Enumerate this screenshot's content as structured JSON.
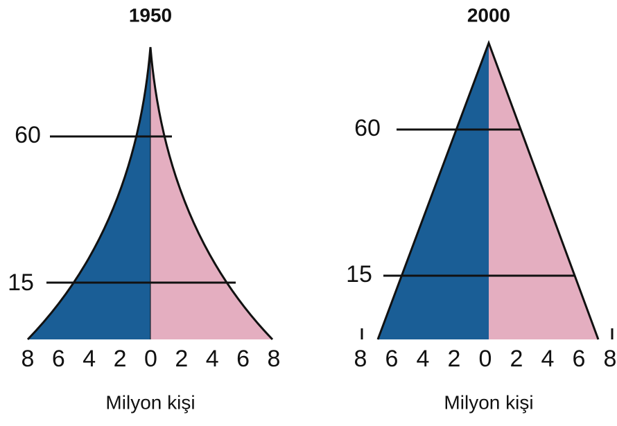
{
  "pyramids": [
    {
      "title": "1950",
      "age_labels": [
        "60",
        "15"
      ],
      "axis_labels": [
        "8",
        "6",
        "4",
        "2",
        "0",
        "2",
        "4",
        "6",
        "8"
      ],
      "axis_title": "Milyon kişi"
    },
    {
      "title": "2000",
      "age_labels": [
        "60",
        "15"
      ],
      "axis_labels": [
        "8",
        "6",
        "4",
        "2",
        "0",
        "2",
        "4",
        "6",
        "8"
      ],
      "axis_title": "Milyon kişi"
    }
  ]
}
